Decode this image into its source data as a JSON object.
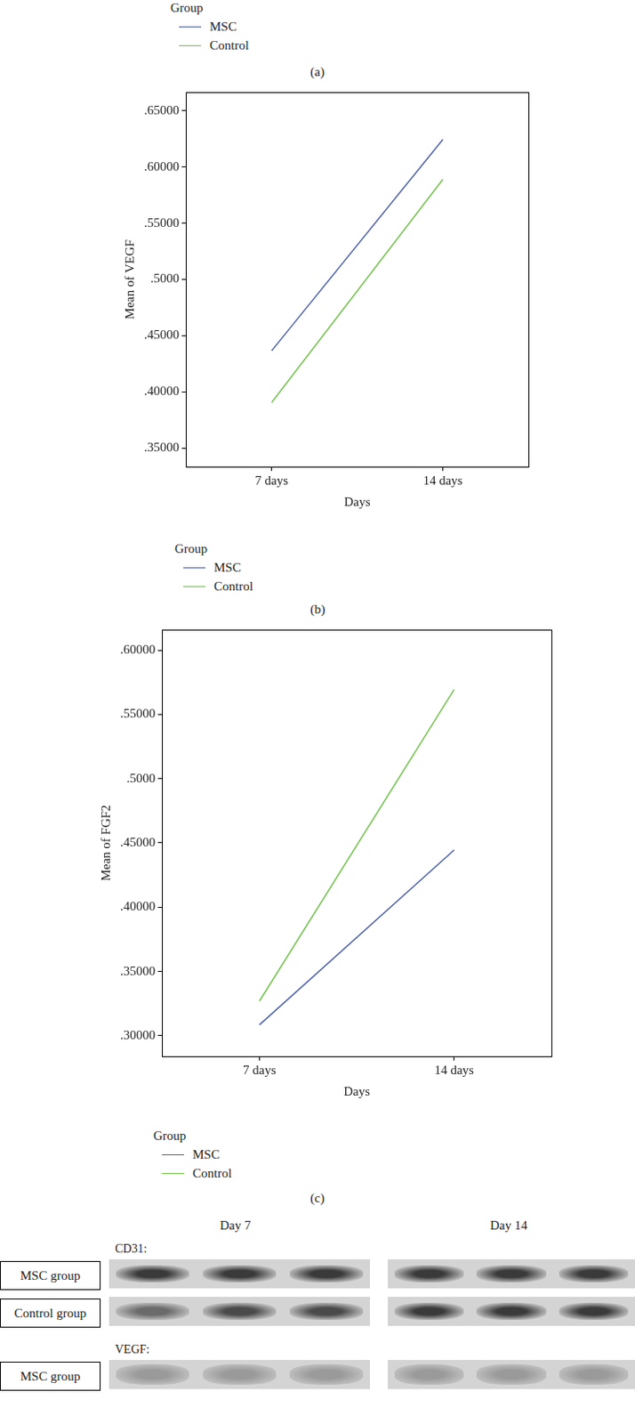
{
  "header": {
    "legend_title": "Group",
    "legend": [
      {
        "name": "MSC",
        "color": "#4a5ea8"
      },
      {
        "name": "Control",
        "color": "#72c24c"
      }
    ],
    "panel_label": "(a)"
  },
  "chart_data": [
    {
      "type": "line",
      "x_label": "Days",
      "y_label": "Mean of VEGF",
      "categories": [
        "7 days",
        "14 days"
      ],
      "series": [
        {
          "name": "MSC",
          "color": "#4a5ea8",
          "values": [
            0.4365,
            0.6246
          ]
        },
        {
          "name": "Control",
          "color": "#72c24c",
          "values": [
            0.3905,
            0.589
          ]
        }
      ],
      "ylim": [
        0.3333,
        0.6667
      ],
      "yticks": [
        {
          "value": 0.35,
          "label": ".35000"
        },
        {
          "value": 0.4,
          "label": ".40000"
        },
        {
          "value": 0.45,
          "label": ".45000"
        },
        {
          "value": 0.5,
          "label": ".5000"
        },
        {
          "value": 0.55,
          "label": ".55000"
        },
        {
          "value": 0.6,
          "label": ".60000"
        },
        {
          "value": 0.65,
          "label": ".65000"
        }
      ],
      "grid": false,
      "legend": "bottom left",
      "legend_title": "Group",
      "panel_label": "(b)"
    },
    {
      "type": "line",
      "x_label": "Days",
      "y_label": "Mean of FGF2",
      "categories": [
        "7 days",
        "14 days"
      ],
      "series": [
        {
          "name": "MSC",
          "color": "#4a5ea8",
          "values": [
            0.3085,
            0.4445
          ]
        },
        {
          "name": "Control",
          "color": "#72c24c",
          "values": [
            0.327,
            0.5695
          ]
        }
      ],
      "ylim": [
        0.284,
        0.616
      ],
      "yticks": [
        {
          "value": 0.3,
          "label": ".30000"
        },
        {
          "value": 0.35,
          "label": ".35000"
        },
        {
          "value": 0.4,
          "label": ".40000"
        },
        {
          "value": 0.45,
          "label": ".45000"
        },
        {
          "value": 0.5,
          "label": ".5000"
        },
        {
          "value": 0.55,
          "label": ".55000"
        },
        {
          "value": 0.6,
          "label": ".60000"
        }
      ],
      "grid": false,
      "legend": "bottom left",
      "legend_title": "Group",
      "panel_label": "(c)"
    }
  ],
  "blot": {
    "columns": [
      "Day 7",
      "Day 14"
    ],
    "sections": [
      {
        "label": "CD31:",
        "rows": [
          "MSC group",
          "Control group"
        ]
      },
      {
        "label": "VEGF:",
        "rows": [
          "MSC group"
        ]
      }
    ]
  }
}
